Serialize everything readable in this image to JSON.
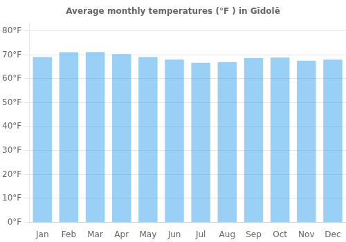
{
  "chart_data": {
    "type": "bar",
    "title": "Average monthly temperatures (°F ) in Gīdolē",
    "categories": [
      "Jan",
      "Feb",
      "Mar",
      "Apr",
      "May",
      "Jun",
      "Jul",
      "Aug",
      "Sep",
      "Oct",
      "Nov",
      "Dec"
    ],
    "values": [
      69.1,
      71.1,
      71.2,
      70.3,
      69.1,
      68.0,
      66.7,
      66.9,
      68.7,
      68.9,
      67.6,
      68.0
    ],
    "ylim": [
      0,
      83
    ],
    "yticks": [
      {
        "value": 0,
        "label": "0°F"
      },
      {
        "value": 10,
        "label": "10°F"
      },
      {
        "value": 20,
        "label": "20°F"
      },
      {
        "value": 30,
        "label": "30°F"
      },
      {
        "value": 40,
        "label": "40°F"
      },
      {
        "value": 50,
        "label": "50°F"
      },
      {
        "value": 60,
        "label": "60°F"
      },
      {
        "value": 70,
        "label": "70°F"
      },
      {
        "value": 80,
        "label": "80°F"
      }
    ],
    "grid": true
  }
}
